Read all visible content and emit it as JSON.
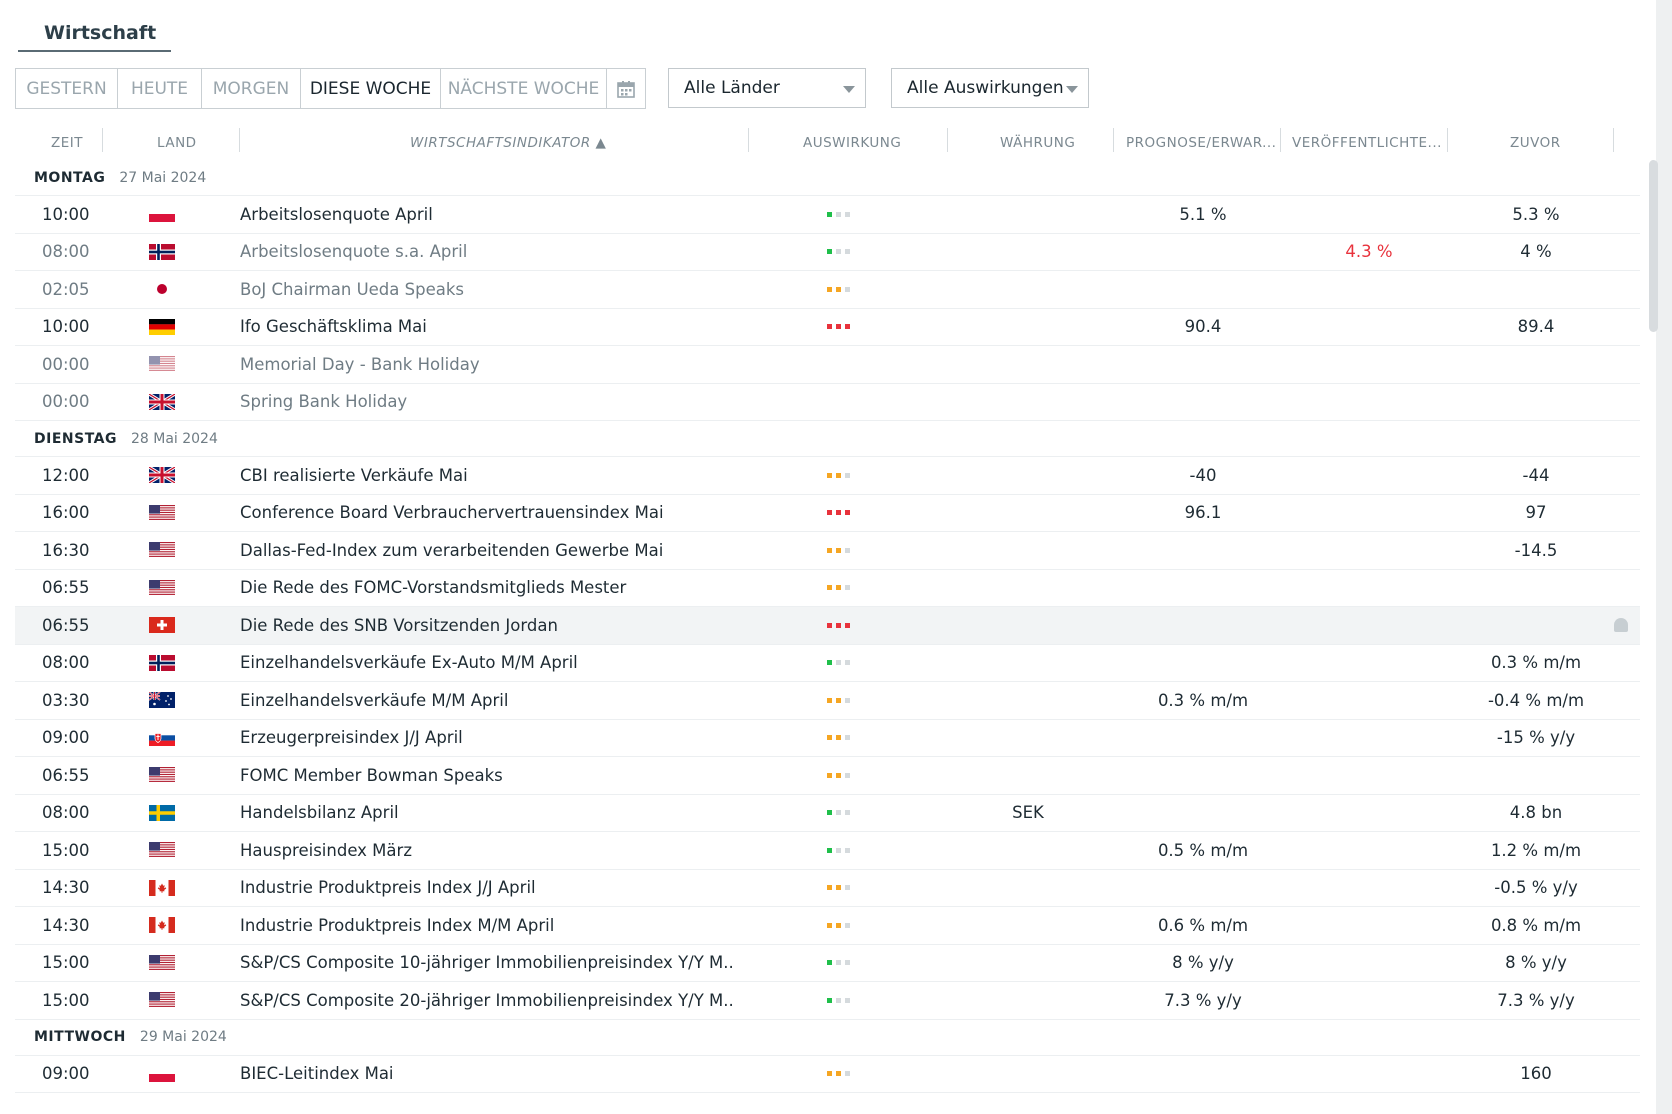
{
  "header": {
    "title": "Wirtschaft"
  },
  "tabs": [
    "GESTERN",
    "HEUTE",
    "MORGEN",
    "DIESE WOCHE",
    "NÄCHSTE WOCHE"
  ],
  "active_tab": "DIESE WOCHE",
  "calendar_icon": "calendar-icon",
  "filters": {
    "country": "Alle Länder",
    "impact": "Alle Auswirkungen"
  },
  "columns": [
    "ZEIT",
    "LAND",
    "WIRTSCHAFTSINDIKATOR ▲",
    "AUSWIRKUNG",
    "WÄHRUNG",
    "PROGNOSE/ERWAR...",
    "VERÖFFENTLICHTE...",
    "ZUVOR"
  ],
  "colors": {
    "low": "#1fbf4a",
    "medium": "#f5a623",
    "high": "#e8323c",
    "inactive": "#d5dadd",
    "accent_red": "#e8323c"
  },
  "days": [
    {
      "name": "MONTAG",
      "date": "27 Mai 2024",
      "events": [
        {
          "time": "10:00",
          "flag": "pl",
          "name": "Arbeitslosenquote April",
          "impact": 1,
          "currency": "",
          "forecast": "5.1 %",
          "actual": "",
          "previous": "5.3 %",
          "dim": false
        },
        {
          "time": "08:00",
          "flag": "no",
          "name": "Arbeitslosenquote s.a. April",
          "impact": 1,
          "currency": "",
          "forecast": "",
          "actual": "4.3 %",
          "previous": "4 %",
          "dim": true
        },
        {
          "time": "02:05",
          "flag": "jp",
          "name": "BoJ Chairman Ueda Speaks",
          "impact": 2,
          "currency": "",
          "forecast": "",
          "actual": "",
          "previous": "",
          "dim": true
        },
        {
          "time": "10:00",
          "flag": "de",
          "name": "Ifo Geschäftsklima Mai",
          "impact": 3,
          "currency": "",
          "forecast": "90.4",
          "actual": "",
          "previous": "89.4",
          "dim": false
        },
        {
          "time": "00:00",
          "flag": "us",
          "name": "Memorial Day - Bank Holiday",
          "impact": 0,
          "currency": "",
          "forecast": "",
          "actual": "",
          "previous": "",
          "dim": true
        },
        {
          "time": "00:00",
          "flag": "gb",
          "name": "Spring Bank Holiday",
          "impact": 0,
          "currency": "",
          "forecast": "",
          "actual": "",
          "previous": "",
          "dim": true
        }
      ]
    },
    {
      "name": "DIENSTAG",
      "date": "28 Mai 2024",
      "events": [
        {
          "time": "12:00",
          "flag": "gb",
          "name": "CBI realisierte Verkäufe Mai",
          "impact": 2,
          "currency": "",
          "forecast": "-40",
          "actual": "",
          "previous": "-44",
          "dim": false
        },
        {
          "time": "16:00",
          "flag": "us",
          "name": "Conference Board Verbrauchervertrauensindex Mai",
          "impact": 3,
          "currency": "",
          "forecast": "96.1",
          "actual": "",
          "previous": "97",
          "dim": false
        },
        {
          "time": "16:30",
          "flag": "us",
          "name": "Dallas-Fed-Index zum verarbeitenden Gewerbe Mai",
          "impact": 2,
          "currency": "",
          "forecast": "",
          "actual": "",
          "previous": "-14.5",
          "dim": false
        },
        {
          "time": "06:55",
          "flag": "us",
          "name": "Die Rede des FOMC-Vorstandsmitglieds Mester",
          "impact": 2,
          "currency": "",
          "forecast": "",
          "actual": "",
          "previous": "",
          "dim": false
        },
        {
          "time": "06:55",
          "flag": "ch",
          "name": "Die Rede des SNB Vorsitzenden Jordan",
          "impact": 3,
          "currency": "",
          "forecast": "",
          "actual": "",
          "previous": "",
          "dim": false,
          "highlight": true
        },
        {
          "time": "08:00",
          "flag": "no",
          "name": "Einzelhandelsverkäufe Ex-Auto M/M April",
          "impact": 1,
          "currency": "",
          "forecast": "",
          "actual": "",
          "previous": "0.3 % m/m",
          "dim": false
        },
        {
          "time": "03:30",
          "flag": "au",
          "name": "Einzelhandelsverkäufe M/M April",
          "impact": 2,
          "currency": "",
          "forecast": "0.3 % m/m",
          "actual": "",
          "previous": "-0.4 % m/m",
          "dim": false
        },
        {
          "time": "09:00",
          "flag": "sk",
          "name": "Erzeugerpreisindex J/J April",
          "impact": 2,
          "currency": "",
          "forecast": "",
          "actual": "",
          "previous": "-15 % y/y",
          "dim": false
        },
        {
          "time": "06:55",
          "flag": "us",
          "name": "FOMC Member Bowman Speaks",
          "impact": 2,
          "currency": "",
          "forecast": "",
          "actual": "",
          "previous": "",
          "dim": false
        },
        {
          "time": "08:00",
          "flag": "se",
          "name": "Handelsbilanz April",
          "impact": 1,
          "currency": "SEK",
          "forecast": "",
          "actual": "",
          "previous": "4.8 bn",
          "dim": false
        },
        {
          "time": "15:00",
          "flag": "us",
          "name": "Hauspreisindex März",
          "impact": 1,
          "currency": "",
          "forecast": "0.5 % m/m",
          "actual": "",
          "previous": "1.2 % m/m",
          "dim": false
        },
        {
          "time": "14:30",
          "flag": "ca",
          "name": "Industrie Produktpreis Index J/J April",
          "impact": 2,
          "currency": "",
          "forecast": "",
          "actual": "",
          "previous": "-0.5 % y/y",
          "dim": false
        },
        {
          "time": "14:30",
          "flag": "ca",
          "name": "Industrie Produktpreis Index M/M April",
          "impact": 2,
          "currency": "",
          "forecast": "0.6 % m/m",
          "actual": "",
          "previous": "0.8 % m/m",
          "dim": false
        },
        {
          "time": "15:00",
          "flag": "us",
          "name": "S&P/CS Composite 10-jähriger Immobilienpreisindex Y/Y M..",
          "impact": 1,
          "currency": "",
          "forecast": "8 % y/y",
          "actual": "",
          "previous": "8 % y/y",
          "dim": false
        },
        {
          "time": "15:00",
          "flag": "us",
          "name": "S&P/CS Composite 20-jähriger Immobilienpreisindex Y/Y M..",
          "impact": 1,
          "currency": "",
          "forecast": "7.3 % y/y",
          "actual": "",
          "previous": "7.3 % y/y",
          "dim": false
        }
      ]
    },
    {
      "name": "MITTWOCH",
      "date": "29 Mai 2024",
      "events": [
        {
          "time": "09:00",
          "flag": "pl",
          "name": "BIEC-Leitindex Mai",
          "impact": 2,
          "currency": "",
          "forecast": "",
          "actual": "",
          "previous": "160",
          "dim": false
        }
      ]
    }
  ]
}
